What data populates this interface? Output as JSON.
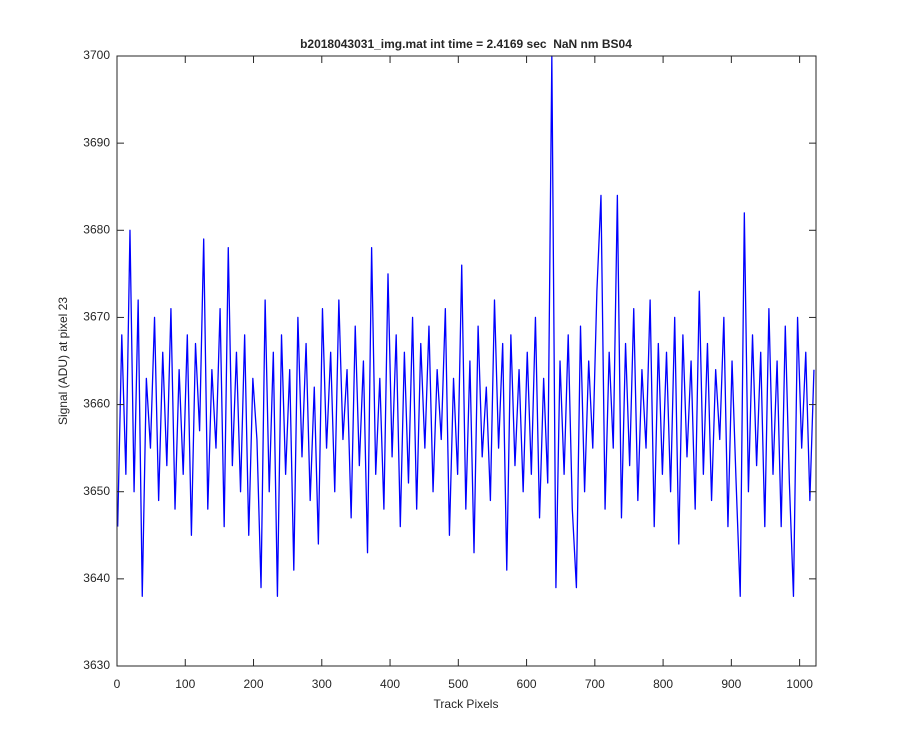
{
  "chart_data": {
    "type": "line",
    "title": "b2018043031_img.mat int time = 2.4169 sec  NaN nm BS04",
    "x_label": "Track Pixels",
    "y_label": "Signal (ADU) at pixel 23",
    "color": "#0000ff",
    "xlim": [
      0,
      1024
    ],
    "ylim": [
      3630,
      3700
    ],
    "xticks": [
      0,
      100,
      200,
      300,
      400,
      500,
      600,
      700,
      800,
      900,
      1000
    ],
    "yticks": [
      3630,
      3640,
      3650,
      3660,
      3670,
      3680,
      3690,
      3700
    ],
    "x": [
      1,
      7,
      13,
      19,
      25,
      31,
      37,
      43,
      49,
      55,
      61,
      67,
      73,
      79,
      85,
      91,
      97,
      103,
      109,
      115,
      121,
      127,
      133,
      139,
      145,
      151,
      157,
      163,
      169,
      175,
      181,
      187,
      193,
      199,
      205,
      211,
      217,
      223,
      229,
      235,
      241,
      247,
      253,
      259,
      265,
      271,
      277,
      283,
      289,
      295,
      301,
      307,
      313,
      319,
      325,
      331,
      337,
      343,
      349,
      355,
      361,
      367,
      373,
      379,
      385,
      391,
      397,
      403,
      409,
      415,
      421,
      427,
      433,
      439,
      445,
      451,
      457,
      463,
      469,
      475,
      481,
      487,
      493,
      499,
      505,
      511,
      517,
      523,
      529,
      535,
      541,
      547,
      553,
      559,
      565,
      571,
      577,
      583,
      589,
      595,
      601,
      607,
      613,
      619,
      625,
      631,
      637,
      643,
      649,
      655,
      661,
      667,
      673,
      679,
      685,
      691,
      697,
      703,
      709,
      715,
      721,
      727,
      733,
      739,
      745,
      751,
      757,
      763,
      769,
      775,
      781,
      787,
      793,
      799,
      805,
      811,
      817,
      823,
      829,
      835,
      841,
      847,
      853,
      859,
      865,
      871,
      877,
      883,
      889,
      895,
      901,
      907,
      913,
      919,
      925,
      931,
      937,
      943,
      949,
      955,
      961,
      967,
      973,
      979,
      985,
      991,
      997,
      1003,
      1009,
      1015,
      1021
    ],
    "values": [
      3646,
      3668,
      3652,
      3680,
      3650,
      3672,
      3638,
      3663,
      3655,
      3670,
      3649,
      3666,
      3653,
      3671,
      3648,
      3664,
      3652,
      3668,
      3645,
      3667,
      3657,
      3679,
      3648,
      3664,
      3655,
      3671,
      3646,
      3678,
      3653,
      3666,
      3650,
      3668,
      3645,
      3663,
      3656,
      3639,
      3672,
      3650,
      3666,
      3638,
      3668,
      3652,
      3664,
      3641,
      3670,
      3654,
      3667,
      3649,
      3662,
      3644,
      3671,
      3655,
      3666,
      3650,
      3672,
      3656,
      3664,
      3647,
      3669,
      3653,
      3665,
      3643,
      3678,
      3652,
      3663,
      3648,
      3675,
      3654,
      3668,
      3646,
      3666,
      3651,
      3670,
      3648,
      3667,
      3655,
      3669,
      3650,
      3664,
      3656,
      3671,
      3645,
      3663,
      3652,
      3676,
      3648,
      3665,
      3643,
      3669,
      3654,
      3662,
      3649,
      3672,
      3655,
      3667,
      3641,
      3668,
      3653,
      3664,
      3650,
      3666,
      3652,
      3670,
      3647,
      3663,
      3651,
      3700,
      3639,
      3665,
      3652,
      3668,
      3648,
      3639,
      3669,
      3650,
      3665,
      3655,
      3673,
      3684,
      3648,
      3666,
      3655,
      3684,
      3647,
      3667,
      3653,
      3671,
      3649,
      3664,
      3655,
      3672,
      3646,
      3667,
      3652,
      3666,
      3650,
      3670,
      3644,
      3668,
      3654,
      3665,
      3648,
      3673,
      3652,
      3667,
      3649,
      3664,
      3656,
      3670,
      3646,
      3665,
      3651,
      3638,
      3682,
      3650,
      3668,
      3653,
      3666,
      3646,
      3671,
      3652,
      3665,
      3646,
      3669,
      3651,
      3638,
      3670,
      3655,
      3666,
      3649,
      3664
    ]
  }
}
